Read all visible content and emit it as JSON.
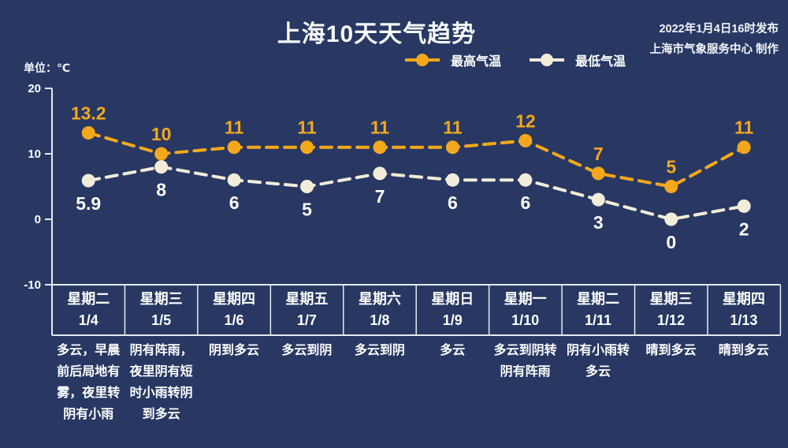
{
  "header": {
    "title": "上海10天天气趋势",
    "published": "2022年1月4日16时发布",
    "producer": "上海市气象服务中心 制作"
  },
  "colors": {
    "background": "#283863",
    "high_series": "#f3a81c",
    "low_series": "#f2ecda",
    "axis": "#e6eaf0",
    "text": "#ffffff"
  },
  "chart_data": {
    "type": "line",
    "title": "上海10天天气趋势",
    "ylabel": "单位：℃",
    "ylim": [
      -10,
      20
    ],
    "yticks": [
      20,
      10,
      0,
      -10
    ],
    "grid": false,
    "legend_position": "top",
    "line_style": "dashed",
    "categories": [
      {
        "day": "星期二",
        "date": "1/4",
        "weather": "多云，早晨前后局地有雾，夜里转阴有小雨"
      },
      {
        "day": "星期三",
        "date": "1/5",
        "weather": "阴有阵雨，夜里阴有短时小雨转阴到多云"
      },
      {
        "day": "星期四",
        "date": "1/6",
        "weather": "阴到多云"
      },
      {
        "day": "星期五",
        "date": "1/7",
        "weather": "多云到阴"
      },
      {
        "day": "星期六",
        "date": "1/8",
        "weather": "多云到阴"
      },
      {
        "day": "星期日",
        "date": "1/9",
        "weather": "多云"
      },
      {
        "day": "星期一",
        "date": "1/10",
        "weather": "多云到阴转阴有阵雨"
      },
      {
        "day": "星期二",
        "date": "1/11",
        "weather": "阴有小雨转多云"
      },
      {
        "day": "星期三",
        "date": "1/12",
        "weather": "晴到多云"
      },
      {
        "day": "星期四",
        "date": "1/13",
        "weather": "晴到多云"
      }
    ],
    "series": [
      {
        "name": "最高气温",
        "color": "#f3a81c",
        "values": [
          13.2,
          10,
          11,
          11,
          11,
          11,
          12,
          7,
          5,
          11
        ]
      },
      {
        "name": "最低气温",
        "color": "#f2ecda",
        "values": [
          5.9,
          8,
          6,
          5,
          7,
          6,
          6,
          3,
          0,
          2
        ]
      }
    ]
  }
}
